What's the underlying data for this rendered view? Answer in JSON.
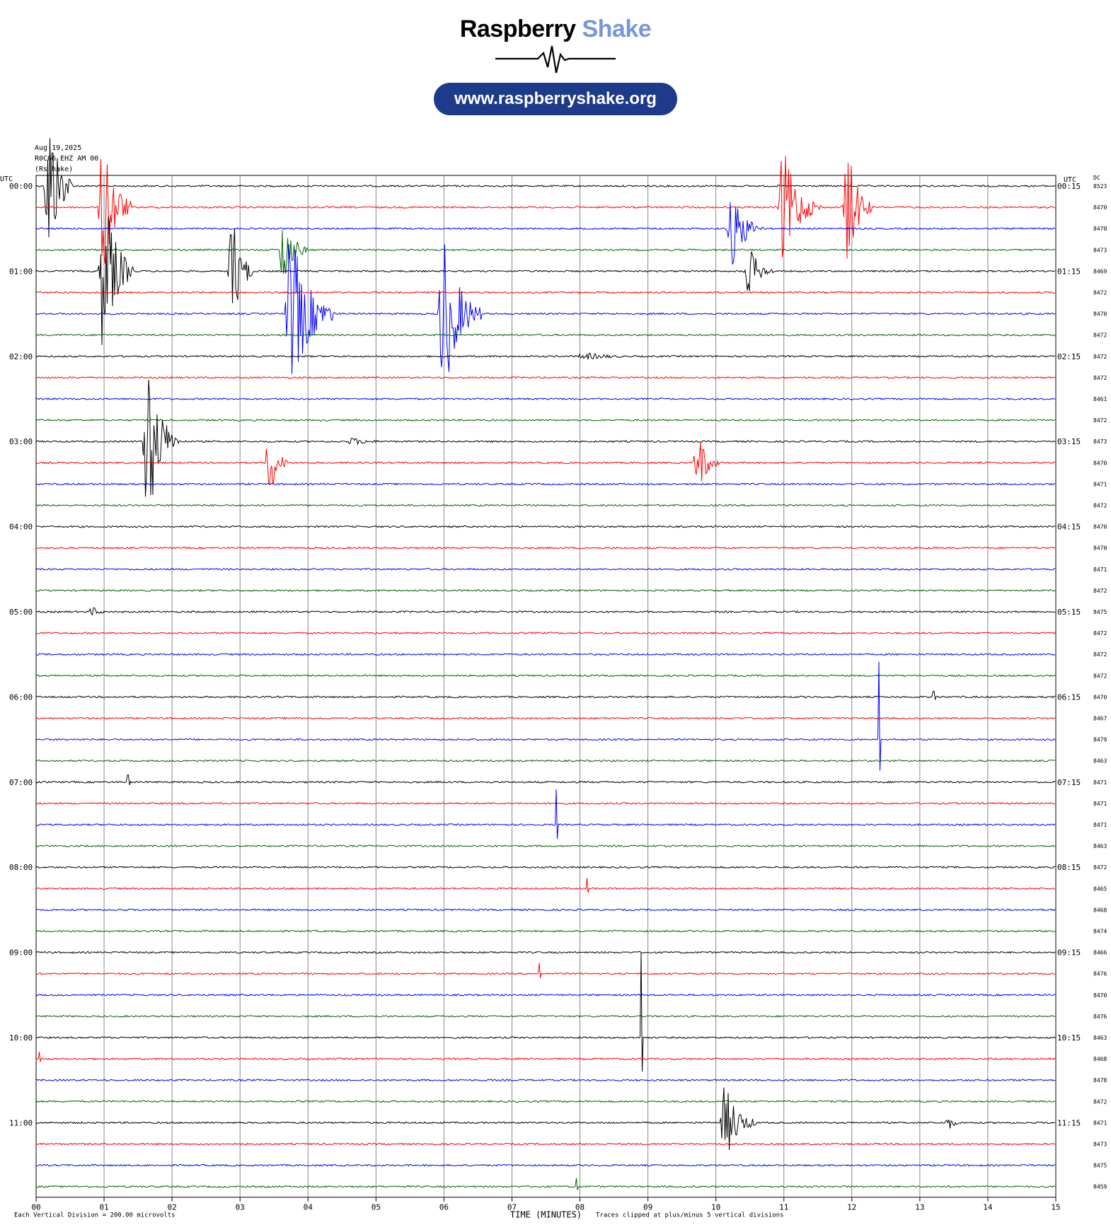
{
  "logo": {
    "word1": "Raspberry",
    "word2": "Shake"
  },
  "url": "www.raspberryshake.org",
  "header": {
    "date": "Aug 19,2025",
    "station": "R0C66 EHZ AM 00",
    "source": "(Rs hake)"
  },
  "colors": {
    "black": "#000000",
    "red": "#ff0000",
    "blue": "#0000ff",
    "green": "#006400",
    "grid": "#888888",
    "pill": "#1e3a8a"
  },
  "chart_data": {
    "type": "helicorder",
    "left_axis_title": "UTC",
    "right_axis_title": "UTC",
    "dc_title": "DC",
    "xlabel": "TIME (MINUTES)",
    "x_ticks": [
      "00",
      "01",
      "02",
      "03",
      "04",
      "05",
      "06",
      "07",
      "08",
      "09",
      "10",
      "11",
      "12",
      "13",
      "14",
      "15"
    ],
    "xlim": [
      0,
      15
    ],
    "left_labels": [
      "00:00",
      "01:00",
      "02:00",
      "03:00",
      "04:00",
      "05:00",
      "06:00",
      "07:00",
      "08:00",
      "09:00",
      "10:00",
      "11:00"
    ],
    "right_labels": [
      "00:15",
      "01:15",
      "02:15",
      "03:15",
      "04:15",
      "05:15",
      "06:15",
      "07:15",
      "08:15",
      "09:15",
      "10:15",
      "11:15"
    ],
    "row_colors": [
      "black",
      "red",
      "blue",
      "green"
    ],
    "dc_values": [
      "8523",
      "8470",
      "8470",
      "8473",
      "8469",
      "8472",
      "8470",
      "8472",
      "8472",
      "8472",
      "8461",
      "8472",
      "8473",
      "8470",
      "8471",
      "8472",
      "8470",
      "8470",
      "8471",
      "8472",
      "8475",
      "8472",
      "8472",
      "8472",
      "8470",
      "8467",
      "8479",
      "8463",
      "8471",
      "8471",
      "8471",
      "8463",
      "8472",
      "8465",
      "8468",
      "8474",
      "8466",
      "8476",
      "8470",
      "8476",
      "8463",
      "8468",
      "8478",
      "8472",
      "8471",
      "8473",
      "8475",
      "8459"
    ],
    "footer_left": "Each Vertical Division = 200.00 microvolts",
    "footer_right": "Traces clipped at plus/minus 5 vertical divisions",
    "events": [
      {
        "row": 0,
        "minute": 0.15,
        "amp": 130,
        "dur": 0.4
      },
      {
        "row": 1,
        "minute": 0.95,
        "amp": 120,
        "dur": 0.45
      },
      {
        "row": 4,
        "minute": 0.95,
        "amp": 130,
        "dur": 0.5
      },
      {
        "row": 4,
        "minute": 2.85,
        "amp": 90,
        "dur": 0.35
      },
      {
        "row": 3,
        "minute": 3.6,
        "amp": 55,
        "dur": 0.4
      },
      {
        "row": 6,
        "minute": 3.7,
        "amp": 130,
        "dur": 0.7
      },
      {
        "row": 6,
        "minute": 5.95,
        "amp": 130,
        "dur": 0.6
      },
      {
        "row": 2,
        "minute": 10.2,
        "amp": 60,
        "dur": 0.5
      },
      {
        "row": 1,
        "minute": 11.9,
        "amp": 95,
        "dur": 0.4
      },
      {
        "row": 1,
        "minute": 10.95,
        "amp": 90,
        "dur": 0.6
      },
      {
        "row": 4,
        "minute": 10.45,
        "amp": 40,
        "dur": 0.4
      },
      {
        "row": 12,
        "minute": 1.6,
        "amp": 130,
        "dur": 0.5
      },
      {
        "row": 13,
        "minute": 3.4,
        "amp": 55,
        "dur": 0.3
      },
      {
        "row": 13,
        "minute": 9.7,
        "amp": 50,
        "dur": 0.35
      },
      {
        "row": 44,
        "minute": 10.1,
        "amp": 60,
        "dur": 0.5
      },
      {
        "row": 44,
        "minute": 13.4,
        "amp": 12,
        "dur": 0.2
      },
      {
        "row": 8,
        "minute": 8.0,
        "amp": 6,
        "dur": 1.2
      },
      {
        "row": 12,
        "minute": 4.6,
        "amp": 6,
        "dur": 0.8
      },
      {
        "row": 20,
        "minute": 0.8,
        "amp": 8,
        "dur": 0.3
      }
    ],
    "spikes": [
      {
        "row": 26,
        "minute": 12.4,
        "amp": 110
      },
      {
        "row": 30,
        "minute": 7.65,
        "amp": 50
      },
      {
        "row": 33,
        "minute": 8.1,
        "amp": 15
      },
      {
        "row": 37,
        "minute": 7.4,
        "amp": 15
      },
      {
        "row": 40,
        "minute": 8.9,
        "amp": 120
      },
      {
        "row": 28,
        "minute": 1.35,
        "amp": 10
      },
      {
        "row": 24,
        "minute": 13.2,
        "amp": 8
      },
      {
        "row": 41,
        "minute": 0.05,
        "amp": 10
      },
      {
        "row": 47,
        "minute": 7.95,
        "amp": 12
      }
    ]
  }
}
